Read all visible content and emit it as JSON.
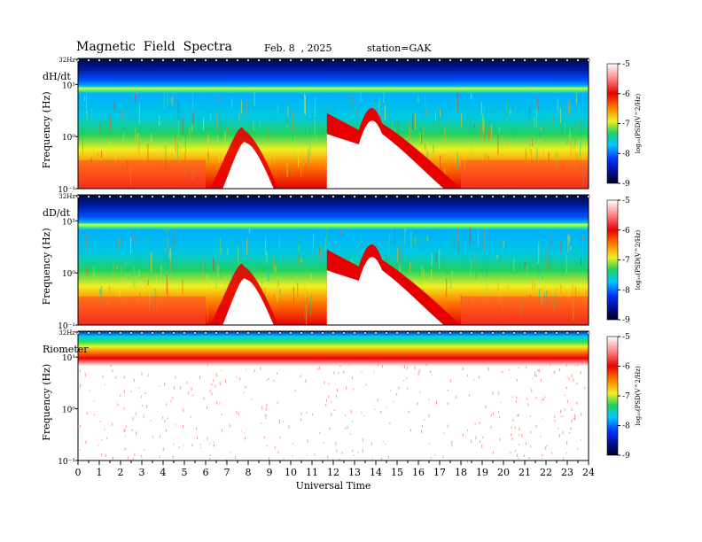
{
  "header": {
    "title": "Magnetic  Field  Spectra",
    "date": "Feb. 8  , 2025",
    "station": "station=GAK"
  },
  "colors": {
    "colormap": [
      "#000a3a",
      "#0024c8",
      "#00b4ff",
      "#20d060",
      "#f0f020",
      "#ff7a00",
      "#e80000",
      "#ffffff"
    ]
  },
  "chart_data": [
    {
      "type": "heatmap",
      "panel_label": "dH/dt",
      "ylabel": "Frequency  (Hz)",
      "ytick_labels": [
        "32Hz",
        "10¹",
        "10⁰",
        "10⁻¹"
      ],
      "colorbar_label": "log₁₀(PSD(V^2/Hz)",
      "colorbar_ticks": [
        "-5",
        "-6",
        "-7",
        "-8",
        "-9"
      ],
      "colorbar_range": [
        -9,
        -5
      ],
      "xlim": [
        0,
        24
      ]
    },
    {
      "type": "heatmap",
      "panel_label": "dD/dt",
      "ylabel": "Frequency  (Hz)",
      "ytick_labels": [
        "32Hz",
        "10¹",
        "10⁰",
        "10⁻¹"
      ],
      "colorbar_label": "log₁₀(PSD(V^2/Hz)",
      "colorbar_ticks": [
        "-5",
        "-6",
        "-7",
        "-8",
        "-9"
      ],
      "colorbar_range": [
        -9,
        -5
      ],
      "xlim": [
        0,
        24
      ]
    },
    {
      "type": "heatmap",
      "panel_label": "Riometer",
      "ylabel": "Frequency  (Hz)",
      "ytick_labels": [
        "32Hz",
        "10¹",
        "10⁰",
        "10⁻¹"
      ],
      "colorbar_label": "log₁₀(PSD(V^2/Hz)",
      "colorbar_ticks": [
        "-5",
        "-6",
        "-7",
        "-8",
        "-9"
      ],
      "colorbar_range": [
        -9,
        -5
      ],
      "xlim": [
        0,
        24
      ]
    }
  ],
  "xaxis": {
    "label": "Universal Time",
    "tick_labels": [
      "0",
      "1",
      "2",
      "3",
      "4",
      "5",
      "6",
      "7",
      "8",
      "9",
      "10",
      "11",
      "12",
      "13",
      "14",
      "15",
      "16",
      "17",
      "18",
      "19",
      "20",
      "21",
      "22",
      "23",
      "24"
    ]
  }
}
